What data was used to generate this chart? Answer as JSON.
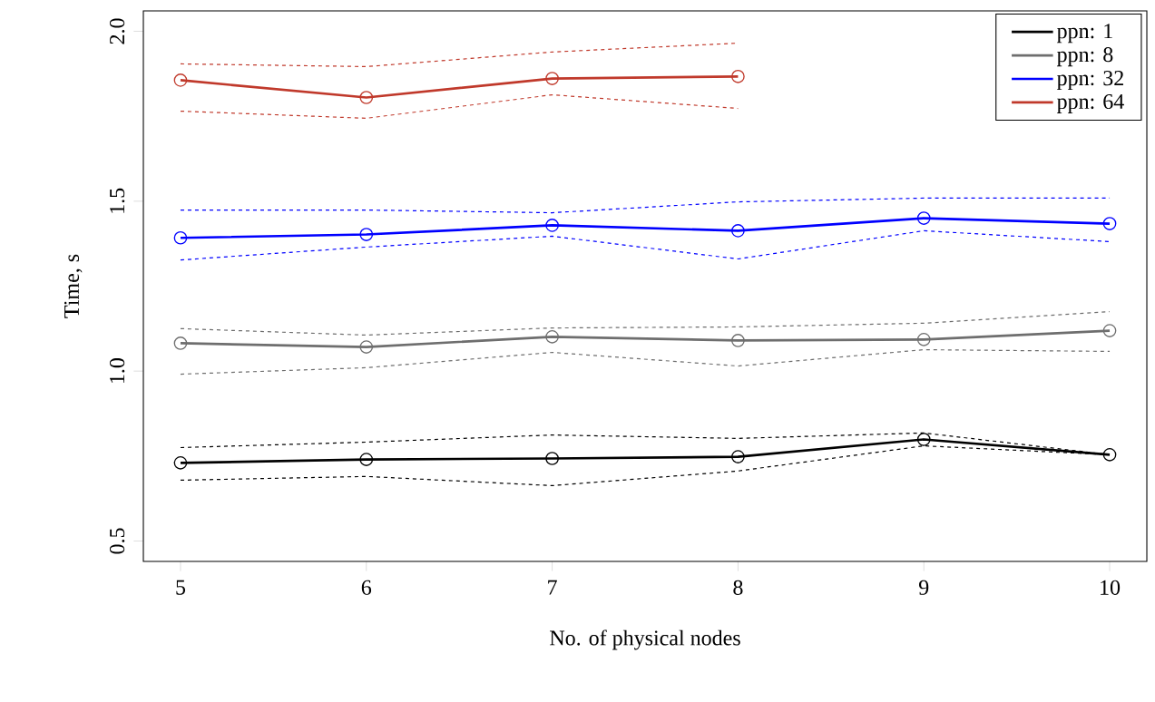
{
  "chart_data": {
    "type": "line",
    "xlabel": "No. of physical nodes",
    "ylabel": "Time, s",
    "x": [
      5,
      6,
      7,
      8,
      9,
      10
    ],
    "series": [
      {
        "name": "ppn: 1",
        "color": "#000000",
        "values": [
          0.73,
          0.74,
          0.743,
          0.748,
          0.799,
          0.754
        ]
      },
      {
        "color": "#000000",
        "line_style": "dashed",
        "marker": "none",
        "values": [
          0.775,
          0.791,
          0.812,
          0.802,
          0.818,
          0.754
        ]
      },
      {
        "color": "#000000",
        "line_style": "dashed",
        "marker": "none",
        "values": [
          0.679,
          0.69,
          0.663,
          0.706,
          0.78,
          0.754
        ]
      },
      {
        "name": "ppn: 8",
        "color": "#6e6e6e",
        "values": [
          1.082,
          1.071,
          1.101,
          1.09,
          1.093,
          1.119
        ]
      },
      {
        "color": "#6e6e6e",
        "line_style": "dashed",
        "marker": "none",
        "values": [
          1.125,
          1.106,
          1.127,
          1.13,
          1.141,
          1.175
        ]
      },
      {
        "color": "#6e6e6e",
        "line_style": "dashed",
        "marker": "none",
        "values": [
          0.991,
          1.01,
          1.055,
          1.015,
          1.063,
          1.058
        ]
      },
      {
        "name": "ppn: 32",
        "color": "#0000ff",
        "values": [
          1.392,
          1.402,
          1.429,
          1.413,
          1.45,
          1.434
        ]
      },
      {
        "color": "#0000ff",
        "line_style": "dashed",
        "marker": "none",
        "values": [
          1.474,
          1.474,
          1.466,
          1.498,
          1.509,
          1.509
        ]
      },
      {
        "color": "#0000ff",
        "line_style": "dashed",
        "marker": "none",
        "values": [
          1.327,
          1.365,
          1.397,
          1.33,
          1.413,
          1.381
        ]
      },
      {
        "name": "ppn: 64",
        "color": "#c0392b",
        "x": [
          5,
          6,
          7,
          8
        ],
        "values": [
          1.856,
          1.805,
          1.861,
          1.867
        ]
      },
      {
        "color": "#c0392b",
        "x": [
          5,
          6,
          7,
          8
        ],
        "line_style": "dashed",
        "marker": "none",
        "values": [
          1.904,
          1.896,
          1.939,
          1.965
        ]
      },
      {
        "color": "#c0392b",
        "x": [
          5,
          6,
          7,
          8
        ],
        "line_style": "dashed",
        "marker": "none",
        "values": [
          1.765,
          1.744,
          1.813,
          1.773
        ]
      }
    ],
    "xlim": [
      4.8,
      10.2
    ],
    "ylim": [
      0.44,
      2.06
    ],
    "xticks": [
      5,
      6,
      7,
      8,
      9,
      10
    ],
    "yticks": [
      0.5,
      {
        "value": 1,
        "label": "1.0"
      },
      1.5,
      {
        "value": 2,
        "label": "2.0"
      }
    ],
    "legend": "top right",
    "marker": "circle",
    "line_style": "solid"
  }
}
